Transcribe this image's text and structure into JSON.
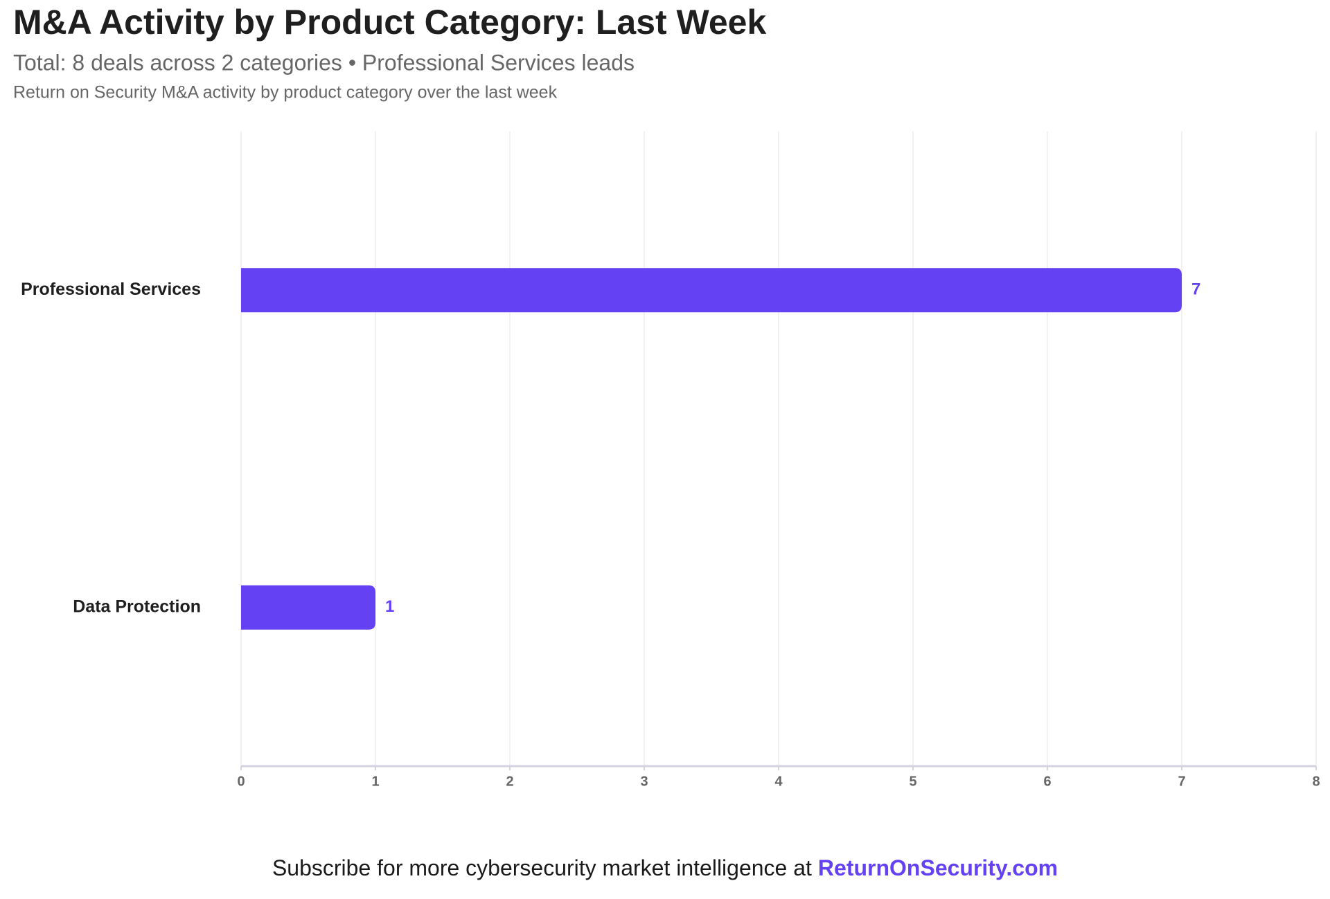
{
  "chart_data": {
    "type": "bar",
    "orientation": "horizontal",
    "title": "M&A Activity by Product Category: Last Week",
    "subtitle": "Total: 8 deals across 2 categories • Professional Services leads",
    "description": "Return on Security M&A activity by product category over the last week",
    "categories": [
      "Professional Services",
      "Data Protection"
    ],
    "values": [
      7,
      1
    ],
    "color": "#6442f4",
    "xlim": [
      0,
      8
    ],
    "xticks": [
      0,
      1,
      2,
      3,
      4,
      5,
      6,
      7,
      8
    ],
    "grid": true,
    "footer": "Subscribe for more cybersecurity market intelligence at",
    "footer_link": "ReturnOnSecurity.com"
  }
}
